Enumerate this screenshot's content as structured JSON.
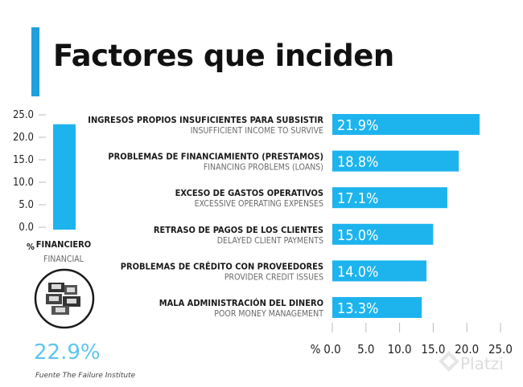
{
  "title": "Factores que inciden",
  "colors": {
    "accent": "#1ea0dd",
    "bar": "#1db4ee",
    "big_value": "#5cc6ef"
  },
  "icon": "money-stacks-icon",
  "source": "Fuente The Failure Institute",
  "watermark": "Platzi",
  "chart_data": [
    {
      "type": "bar",
      "orientation": "vertical",
      "categories": [
        "FINANCIERO"
      ],
      "category_en": [
        "FINANCIAL"
      ],
      "values": [
        22.9
      ],
      "value_label": "22.9%",
      "ylabel": "%",
      "ylim": [
        0,
        25
      ],
      "yticks": [
        "0.0",
        "5.0",
        "10.0",
        "15.0",
        "20.0",
        "25.0"
      ]
    },
    {
      "type": "bar",
      "orientation": "horizontal",
      "categories": [
        "INGRESOS PROPIOS INSUFICIENTES PARA SUBSISTIR",
        "PROBLEMAS DE FINANCIAMIENTO (PRESTAMOS)",
        "EXCESO DE GASTOS OPERATIVOS",
        "RETRASO DE PAGOS DE LOS CLIENTES",
        "PROBLEMAS DE CRÉDITO CON PROVEEDORES",
        "MALA ADMINISTRACIÓN DEL DINERO"
      ],
      "categories_en": [
        "INSUFFICIENT INCOME TO SURVIVE",
        "FINANCING PROBLEMS (LOANS)",
        "EXCESSIVE OPERATING EXPENSES",
        "DELAYED CLIENT PAYMENTS",
        "PROVIDER CREDIT ISSUES",
        "POOR MONEY MANAGEMENT"
      ],
      "values": [
        21.9,
        18.8,
        17.1,
        15.0,
        14.0,
        13.3
      ],
      "value_labels": [
        "21.9%",
        "18.8%",
        "17.1%",
        "15.0%",
        "14.0%",
        "13.3%"
      ],
      "xlabel": "%",
      "xlim": [
        0,
        25
      ],
      "xticks": [
        "0.0",
        "5.0",
        "10.0",
        "15.0",
        "20.0",
        "25.0"
      ]
    }
  ]
}
